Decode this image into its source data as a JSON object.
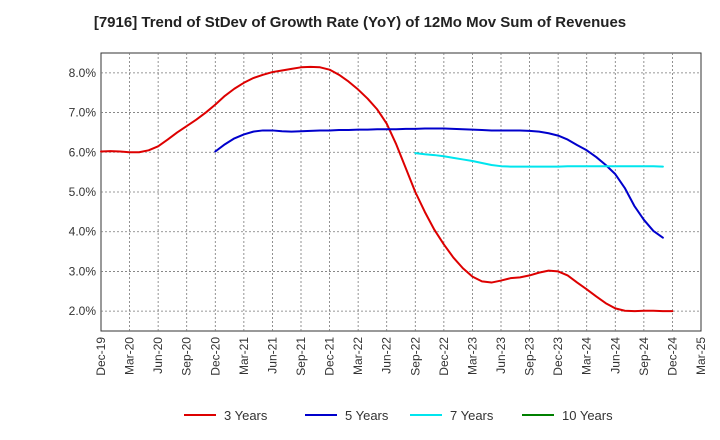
{
  "chart_data": {
    "type": "line",
    "title": "[7916]  Trend of StDev of Growth Rate (YoY) of 12Mo Mov Sum of Revenues",
    "xlabel": "",
    "ylabel": "",
    "ylim": [
      1.5,
      8.5
    ],
    "y_ticks": [
      2.0,
      3.0,
      4.0,
      5.0,
      6.0,
      7.0,
      8.0
    ],
    "y_tick_labels": [
      "2.0%",
      "3.0%",
      "4.0%",
      "5.0%",
      "6.0%",
      "7.0%",
      "8.0%"
    ],
    "x_tick_labels": [
      "Dec-19",
      "Mar-20",
      "Jun-20",
      "Sep-20",
      "Dec-20",
      "Mar-21",
      "Jun-21",
      "Sep-21",
      "Dec-21",
      "Mar-22",
      "Jun-22",
      "Sep-22",
      "Dec-22",
      "Mar-23",
      "Jun-23",
      "Sep-23",
      "Dec-23",
      "Mar-24",
      "Jun-24",
      "Sep-24",
      "Dec-24",
      "Mar-25"
    ],
    "grid": true,
    "legend_position": "bottom",
    "series": [
      {
        "name": "3 Years",
        "color": "#dd0000",
        "points": [
          [
            0,
            6.02
          ],
          [
            1,
            6.03
          ],
          [
            2,
            6.02
          ],
          [
            3,
            6.0
          ],
          [
            4,
            6.0
          ],
          [
            5,
            6.05
          ],
          [
            6,
            6.15
          ],
          [
            7,
            6.32
          ],
          [
            8,
            6.5
          ],
          [
            9,
            6.66
          ],
          [
            10,
            6.82
          ],
          [
            11,
            7.0
          ],
          [
            12,
            7.2
          ],
          [
            13,
            7.42
          ],
          [
            14,
            7.6
          ],
          [
            15,
            7.75
          ],
          [
            16,
            7.87
          ],
          [
            17,
            7.95
          ],
          [
            18,
            8.02
          ],
          [
            19,
            8.06
          ],
          [
            20,
            8.1
          ],
          [
            21,
            8.14
          ],
          [
            22,
            8.15
          ],
          [
            23,
            8.14
          ],
          [
            24,
            8.08
          ],
          [
            25,
            7.95
          ],
          [
            26,
            7.78
          ],
          [
            27,
            7.58
          ],
          [
            28,
            7.35
          ],
          [
            29,
            7.08
          ],
          [
            30,
            6.72
          ],
          [
            31,
            6.2
          ],
          [
            32,
            5.6
          ],
          [
            33,
            5.0
          ],
          [
            34,
            4.5
          ],
          [
            35,
            4.05
          ],
          [
            36,
            3.68
          ],
          [
            37,
            3.35
          ],
          [
            38,
            3.08
          ],
          [
            39,
            2.87
          ],
          [
            40,
            2.75
          ],
          [
            41,
            2.72
          ],
          [
            42,
            2.77
          ],
          [
            43,
            2.83
          ],
          [
            44,
            2.85
          ],
          [
            45,
            2.9
          ],
          [
            46,
            2.97
          ],
          [
            47,
            3.02
          ],
          [
            48,
            3.0
          ],
          [
            49,
            2.9
          ],
          [
            50,
            2.72
          ],
          [
            51,
            2.55
          ],
          [
            52,
            2.37
          ],
          [
            53,
            2.2
          ],
          [
            54,
            2.07
          ],
          [
            55,
            2.01
          ],
          [
            56,
            2.0
          ],
          [
            57,
            2.01
          ],
          [
            58,
            2.01
          ],
          [
            59,
            2.0
          ],
          [
            60,
            2.0
          ]
        ]
      },
      {
        "name": "5 Years",
        "color": "#0000cc",
        "points": [
          [
            12,
            6.02
          ],
          [
            13,
            6.2
          ],
          [
            14,
            6.35
          ],
          [
            15,
            6.45
          ],
          [
            16,
            6.52
          ],
          [
            17,
            6.55
          ],
          [
            18,
            6.55
          ],
          [
            19,
            6.53
          ],
          [
            20,
            6.52
          ],
          [
            21,
            6.53
          ],
          [
            22,
            6.54
          ],
          [
            23,
            6.55
          ],
          [
            24,
            6.55
          ],
          [
            25,
            6.56
          ],
          [
            26,
            6.56
          ],
          [
            27,
            6.57
          ],
          [
            28,
            6.57
          ],
          [
            29,
            6.58
          ],
          [
            30,
            6.58
          ],
          [
            31,
            6.58
          ],
          [
            32,
            6.59
          ],
          [
            33,
            6.59
          ],
          [
            34,
            6.6
          ],
          [
            35,
            6.6
          ],
          [
            36,
            6.6
          ],
          [
            37,
            6.59
          ],
          [
            38,
            6.58
          ],
          [
            39,
            6.57
          ],
          [
            40,
            6.56
          ],
          [
            41,
            6.55
          ],
          [
            42,
            6.55
          ],
          [
            43,
            6.55
          ],
          [
            44,
            6.55
          ],
          [
            45,
            6.54
          ],
          [
            46,
            6.52
          ],
          [
            47,
            6.48
          ],
          [
            48,
            6.42
          ],
          [
            49,
            6.32
          ],
          [
            50,
            6.18
          ],
          [
            51,
            6.05
          ],
          [
            52,
            5.88
          ],
          [
            53,
            5.68
          ],
          [
            54,
            5.45
          ],
          [
            55,
            5.1
          ],
          [
            56,
            4.65
          ],
          [
            57,
            4.3
          ],
          [
            58,
            4.02
          ],
          [
            59,
            3.85
          ]
        ]
      },
      {
        "name": "7 Years",
        "color": "#00e5ee",
        "points": [
          [
            33,
            5.98
          ],
          [
            34,
            5.95
          ],
          [
            35,
            5.93
          ],
          [
            36,
            5.9
          ],
          [
            37,
            5.86
          ],
          [
            38,
            5.82
          ],
          [
            39,
            5.78
          ],
          [
            40,
            5.73
          ],
          [
            41,
            5.68
          ],
          [
            42,
            5.65
          ],
          [
            43,
            5.64
          ],
          [
            44,
            5.64
          ],
          [
            45,
            5.64
          ],
          [
            46,
            5.64
          ],
          [
            47,
            5.64
          ],
          [
            48,
            5.64
          ],
          [
            49,
            5.65
          ],
          [
            50,
            5.65
          ],
          [
            51,
            5.65
          ],
          [
            52,
            5.65
          ],
          [
            53,
            5.65
          ],
          [
            54,
            5.65
          ],
          [
            55,
            5.65
          ],
          [
            56,
            5.65
          ],
          [
            57,
            5.65
          ],
          [
            58,
            5.65
          ],
          [
            59,
            5.64
          ]
        ]
      },
      {
        "name": "10 Years",
        "color": "#008000",
        "points": []
      }
    ]
  }
}
